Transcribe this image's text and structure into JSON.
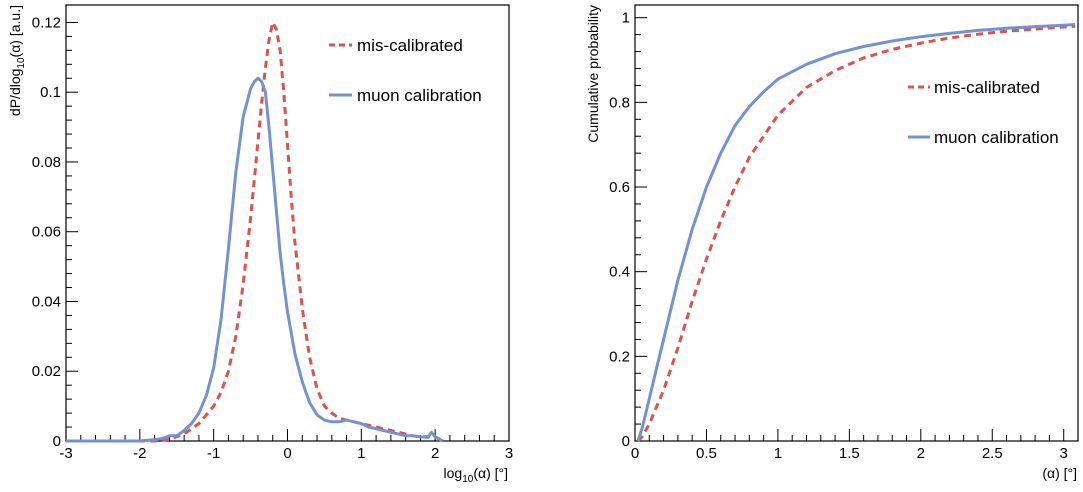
{
  "chart_data": [
    {
      "type": "line",
      "xlabel_main": "log",
      "xlabel_sub": "10",
      "xlabel_rest": "(α) [°]",
      "ylabel_main": "dP/dlog",
      "ylabel_sub": "10",
      "ylabel_rest": "(α) [a.u.]",
      "xlim": [
        -3,
        3
      ],
      "ylim": [
        0,
        0.125
      ],
      "x_ticks": [
        -3,
        -2,
        -1,
        0,
        1,
        2,
        3
      ],
      "x_tick_labels": [
        "-3",
        "-2",
        "-1",
        "0",
        "1",
        "2",
        "3"
      ],
      "y_ticks": [
        0,
        0.02,
        0.04,
        0.06,
        0.08,
        0.1,
        0.12
      ],
      "y_tick_labels": [
        "0",
        "0.02",
        "0.04",
        "0.06",
        "0.08",
        "0.1",
        "0.12"
      ],
      "grid": false,
      "legend_position": "top-right",
      "series": [
        {
          "name": "mis-calibrated",
          "color": "#d9534f",
          "style": "dashed",
          "x": [
            -3.0,
            -2.0,
            -1.75,
            -1.6,
            -1.4,
            -1.2,
            -1.0,
            -0.9,
            -0.8,
            -0.7,
            -0.6,
            -0.5,
            -0.45,
            -0.4,
            -0.35,
            -0.3,
            -0.25,
            -0.2,
            -0.15,
            -0.1,
            -0.05,
            0.0,
            0.05,
            0.1,
            0.2,
            0.3,
            0.4,
            0.5,
            0.6,
            0.7,
            0.8,
            0.9,
            1.0,
            1.1,
            1.2,
            1.3,
            1.4,
            1.5,
            1.6,
            1.7,
            1.8,
            1.9,
            2.0,
            2.1
          ],
          "y": [
            0.0,
            0.0,
            0.0,
            0.0005,
            0.002,
            0.005,
            0.01,
            0.014,
            0.02,
            0.03,
            0.045,
            0.064,
            0.075,
            0.086,
            0.097,
            0.107,
            0.115,
            0.12,
            0.118,
            0.112,
            0.1,
            0.085,
            0.07,
            0.057,
            0.038,
            0.024,
            0.015,
            0.01,
            0.008,
            0.0065,
            0.006,
            0.0055,
            0.005,
            0.0045,
            0.004,
            0.0035,
            0.003,
            0.0025,
            0.002,
            0.0015,
            0.0012,
            0.0012,
            0.0012,
            0.0
          ]
        },
        {
          "name": "muon calibration",
          "color": "#7393d0",
          "style": "solid",
          "x": [
            -3.0,
            -2.0,
            -1.75,
            -1.65,
            -1.6,
            -1.5,
            -1.4,
            -1.3,
            -1.2,
            -1.1,
            -1.0,
            -0.9,
            -0.8,
            -0.7,
            -0.6,
            -0.5,
            -0.45,
            -0.4,
            -0.35,
            -0.3,
            -0.25,
            -0.2,
            -0.15,
            -0.1,
            -0.05,
            0.0,
            0.1,
            0.2,
            0.3,
            0.4,
            0.5,
            0.6,
            0.7,
            0.8,
            0.9,
            1.0,
            1.1,
            1.2,
            1.3,
            1.4,
            1.5,
            1.6,
            1.7,
            1.8,
            1.9,
            1.95,
            2.0,
            2.1
          ],
          "y": [
            0.0,
            0.0,
            0.0005,
            0.001,
            0.0015,
            0.0015,
            0.003,
            0.005,
            0.008,
            0.013,
            0.021,
            0.035,
            0.055,
            0.077,
            0.093,
            0.101,
            0.103,
            0.104,
            0.103,
            0.1,
            0.09,
            0.078,
            0.066,
            0.054,
            0.045,
            0.037,
            0.025,
            0.017,
            0.011,
            0.0075,
            0.006,
            0.0055,
            0.0055,
            0.006,
            0.0055,
            0.005,
            0.004,
            0.0035,
            0.003,
            0.0025,
            0.002,
            0.0015,
            0.0015,
            0.0012,
            0.001,
            0.0025,
            0.0012,
            0.0
          ]
        }
      ]
    },
    {
      "type": "line",
      "xlabel": "(α) [°]",
      "ylabel": "Cumulative probability",
      "xlim": [
        0,
        3.1
      ],
      "ylim": [
        0,
        1.03
      ],
      "x_ticks": [
        0,
        0.5,
        1,
        1.5,
        2,
        2.5,
        3
      ],
      "x_tick_labels": [
        "0",
        "0.5",
        "1",
        "1.5",
        "2",
        "2.5",
        "3"
      ],
      "y_ticks": [
        0,
        0.2,
        0.4,
        0.6,
        0.8,
        1
      ],
      "y_tick_labels": [
        "0",
        "0.2",
        "0.4",
        "0.6",
        "0.8",
        "1"
      ],
      "grid": false,
      "legend_position": "center-right",
      "series": [
        {
          "name": "mis-calibrated",
          "color": "#d9534f",
          "style": "dashed",
          "x": [
            0.02,
            0.05,
            0.1,
            0.15,
            0.2,
            0.3,
            0.4,
            0.5,
            0.6,
            0.7,
            0.8,
            0.9,
            1.0,
            1.2,
            1.4,
            1.6,
            1.8,
            2.0,
            2.2,
            2.4,
            2.6,
            2.8,
            3.0,
            3.08
          ],
          "y": [
            0.0,
            0.01,
            0.04,
            0.08,
            0.12,
            0.22,
            0.33,
            0.43,
            0.52,
            0.6,
            0.67,
            0.72,
            0.77,
            0.835,
            0.875,
            0.905,
            0.925,
            0.94,
            0.952,
            0.961,
            0.968,
            0.973,
            0.978,
            0.98
          ]
        },
        {
          "name": "muon calibration",
          "color": "#7393d0",
          "style": "solid",
          "x": [
            0.02,
            0.05,
            0.1,
            0.15,
            0.2,
            0.3,
            0.4,
            0.5,
            0.6,
            0.7,
            0.8,
            0.9,
            1.0,
            1.2,
            1.4,
            1.6,
            1.8,
            2.0,
            2.2,
            2.4,
            2.6,
            2.8,
            3.0,
            3.08
          ],
          "y": [
            0.0,
            0.03,
            0.1,
            0.17,
            0.24,
            0.38,
            0.5,
            0.6,
            0.68,
            0.745,
            0.79,
            0.825,
            0.855,
            0.89,
            0.915,
            0.932,
            0.945,
            0.955,
            0.963,
            0.97,
            0.975,
            0.979,
            0.982,
            0.984
          ]
        }
      ]
    }
  ]
}
